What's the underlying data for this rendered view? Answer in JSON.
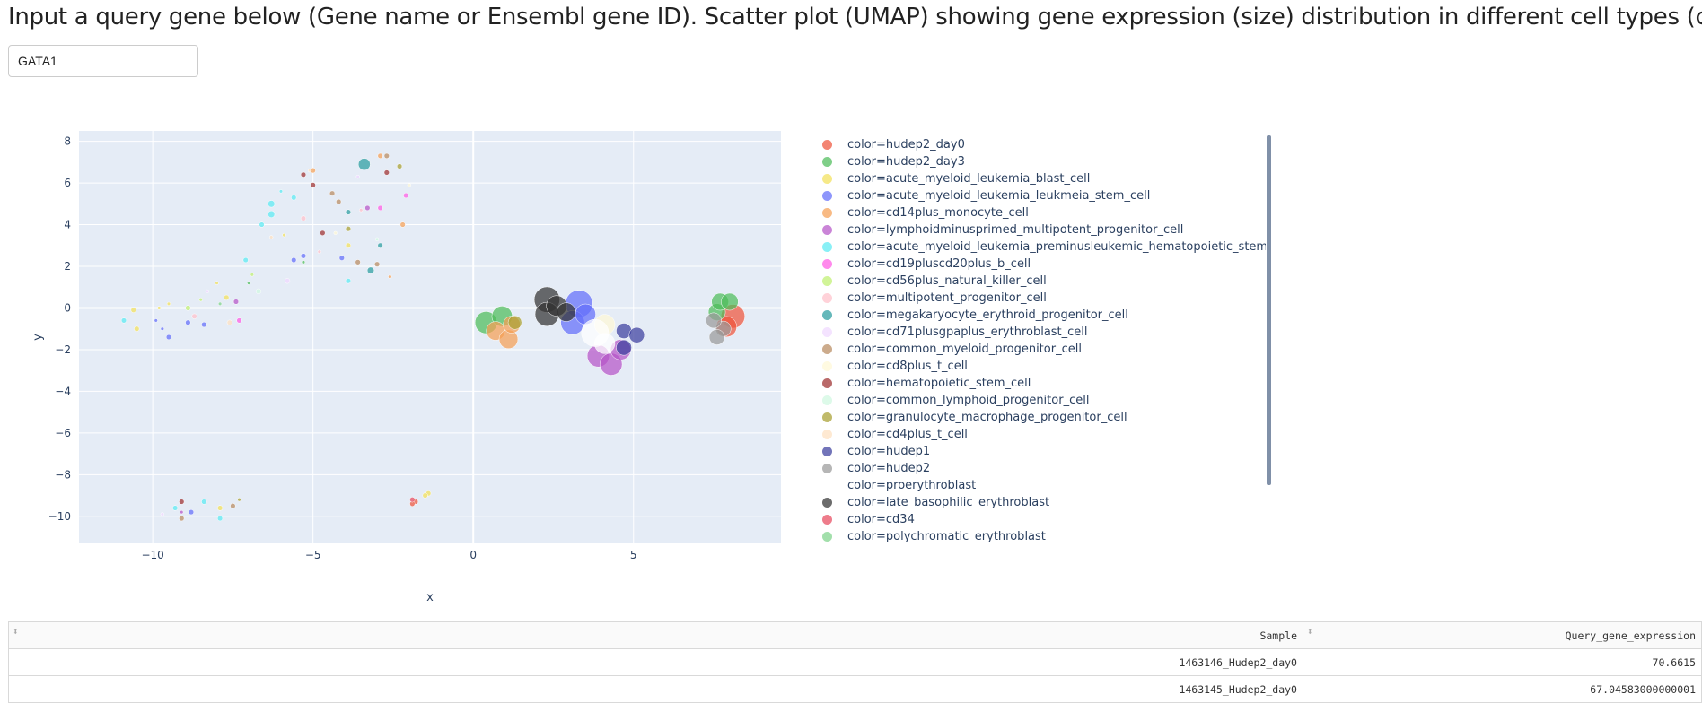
{
  "header": {
    "title": "Input a query gene below (Gene name or Ensembl gene ID). Scatter plot (UMAP) showing gene expression (size) distribution in different cell types (color)"
  },
  "query": {
    "value": "GATA1"
  },
  "chart_data": {
    "type": "scatter",
    "xlabel": "x",
    "ylabel": "y",
    "xlim": [
      -12.3,
      9.6
    ],
    "ylim": [
      -11.3,
      8.5
    ],
    "x_ticks": [
      -10,
      -5,
      0,
      5
    ],
    "y_ticks": [
      8,
      6,
      4,
      2,
      0,
      -2,
      -4,
      -6,
      -8,
      -10
    ],
    "background": "#e5ecf6",
    "grid": true,
    "legend_position": "right",
    "series": [
      {
        "name": "color=hudep2_day0",
        "color": "#ef553b",
        "points": [
          [
            8.1,
            -0.4,
            14
          ],
          [
            7.9,
            -0.9,
            12
          ],
          [
            -1.8,
            -9.3,
            3
          ],
          [
            -1.9,
            -9.4,
            3
          ]
        ]
      },
      {
        "name": "color=hudep2_day3",
        "color": "#4dbd5a",
        "points": [
          [
            0.4,
            -0.7,
            13
          ],
          [
            0.9,
            -0.4,
            12
          ],
          [
            7.6,
            -0.2,
            10
          ],
          [
            7.7,
            0.3,
            10
          ],
          [
            8.0,
            0.3,
            10
          ],
          [
            -7.0,
            1.2,
            2
          ],
          [
            -5.3,
            2.2,
            2
          ]
        ]
      },
      {
        "name": "color=acute_myeloid_leukemia_blast_cell",
        "color": "#f2e05a",
        "points": [
          [
            -10.6,
            -0.1,
            3
          ],
          [
            -10.5,
            -1.0,
            3
          ],
          [
            -7.7,
            0.5,
            3
          ],
          [
            -7.9,
            -9.6,
            3
          ],
          [
            -1.4,
            -8.9,
            3
          ],
          [
            -1.5,
            -9.0,
            3
          ],
          [
            -3.9,
            3.0,
            3
          ],
          [
            -8.0,
            1.2,
            2
          ],
          [
            -9.5,
            0.2,
            2
          ],
          [
            -9.8,
            0.0,
            2
          ],
          [
            -5.9,
            3.5,
            2
          ]
        ]
      },
      {
        "name": "color=acute_myeloid_leukemia_leukmeia_stem_cell",
        "color": "#636efa",
        "points": [
          [
            3.3,
            0.2,
            16
          ],
          [
            3.1,
            -0.7,
            14
          ],
          [
            3.5,
            -0.3,
            12
          ],
          [
            -9.9,
            -0.6,
            2
          ],
          [
            -9.7,
            -1.0,
            2
          ],
          [
            -9.5,
            -1.4,
            3
          ],
          [
            -8.9,
            -0.7,
            3
          ],
          [
            -8.4,
            -0.8,
            3
          ],
          [
            -5.3,
            2.5,
            3
          ],
          [
            -5.6,
            2.3,
            3
          ],
          [
            -4.1,
            2.4,
            3
          ],
          [
            -8.8,
            -9.8,
            3
          ]
        ]
      },
      {
        "name": "color=cd14plus_monocyte_cell",
        "color": "#f5a055",
        "points": [
          [
            0.7,
            -1.1,
            11
          ],
          [
            1.1,
            -1.5,
            11
          ],
          [
            1.2,
            -0.8,
            10
          ],
          [
            -5.0,
            6.6,
            3
          ],
          [
            -2.9,
            7.3,
            3
          ],
          [
            -2.2,
            4.0,
            3
          ],
          [
            -2.6,
            1.5,
            2
          ]
        ]
      },
      {
        "name": "color=lymphoidminusprimed_multipotent_progenitor_cell",
        "color": "#b655c8",
        "points": [
          [
            3.9,
            -2.3,
            13
          ],
          [
            4.3,
            -2.7,
            13
          ],
          [
            4.6,
            -2.0,
            12
          ],
          [
            -7.4,
            0.3,
            3
          ],
          [
            -3.3,
            4.8,
            3
          ],
          [
            -9.1,
            -9.8,
            2
          ]
        ]
      },
      {
        "name": "color=acute_myeloid_leukemia_preminusleukemic_hematopoietic_stem_cell",
        "color": "#5ceaf2",
        "points": [
          [
            -6.3,
            4.5,
            4
          ],
          [
            -6.3,
            5.0,
            4
          ],
          [
            -6.6,
            4.0,
            3
          ],
          [
            -7.1,
            2.3,
            3
          ],
          [
            -5.6,
            5.3,
            3
          ],
          [
            -6.0,
            5.6,
            2
          ],
          [
            -9.3,
            -9.6,
            3
          ],
          [
            -8.4,
            -9.3,
            3
          ],
          [
            -7.9,
            -10.1,
            3
          ],
          [
            -3.9,
            1.3,
            3
          ],
          [
            -10.9,
            -0.6,
            3
          ]
        ]
      },
      {
        "name": "color=cd19pluscd20plus_b_cell",
        "color": "#ff5be4",
        "points": [
          [
            -7.3,
            -0.6,
            3
          ],
          [
            -2.9,
            4.8,
            3
          ],
          [
            -2.1,
            5.4,
            3
          ]
        ]
      },
      {
        "name": "color=cd56plus_natural_killer_cell",
        "color": "#bff070",
        "points": [
          [
            -8.9,
            0.0,
            3
          ],
          [
            -6.9,
            1.6,
            2
          ],
          [
            -8.5,
            0.4,
            2
          ]
        ]
      },
      {
        "name": "color=multipotent_progenitor_cell",
        "color": "#ffc0cb",
        "points": [
          [
            -8.7,
            -0.4,
            3
          ],
          [
            -5.3,
            4.3,
            3
          ],
          [
            -4.8,
            2.7,
            2
          ],
          [
            -3.5,
            4.7,
            2
          ]
        ]
      },
      {
        "name": "color=megakaryocyte_erythroid_progenitor_cell",
        "color": "#2a9da0",
        "points": [
          [
            -3.4,
            6.9,
            7
          ],
          [
            -3.2,
            1.8,
            4
          ],
          [
            -3.9,
            4.6,
            3
          ],
          [
            -2.9,
            3.0,
            3
          ]
        ]
      },
      {
        "name": "color=cd71plusgpaplus_erythroblast_cell",
        "color": "#f0d8ff",
        "points": [
          [
            -5.8,
            1.3,
            3
          ],
          [
            -9.7,
            -9.9,
            2
          ],
          [
            -8.3,
            0.8,
            2
          ],
          [
            -3.6,
            6.3,
            2
          ]
        ]
      },
      {
        "name": "color=common_myeloid_progenitor_cell",
        "color": "#b88b5f",
        "points": [
          [
            -4.4,
            5.5,
            3
          ],
          [
            -3.6,
            2.2,
            3
          ],
          [
            -9.1,
            -10.1,
            3
          ],
          [
            -7.5,
            -9.5,
            3
          ],
          [
            -4.2,
            5.1,
            3
          ],
          [
            -2.7,
            7.3,
            3
          ],
          [
            -3.0,
            2.1,
            3
          ]
        ]
      },
      {
        "name": "color=cd8plus_t_cell",
        "color": "#fff8d6",
        "points": [
          [
            4.1,
            -0.8,
            12
          ],
          [
            -4.3,
            3.6,
            2
          ],
          [
            -2.0,
            5.9,
            2
          ]
        ]
      },
      {
        "name": "color=hematopoietic_stem_cell",
        "color": "#9e2f2f",
        "points": [
          [
            -5.3,
            6.4,
            3
          ],
          [
            -4.7,
            3.6,
            3
          ],
          [
            -2.7,
            6.5,
            3
          ],
          [
            -9.1,
            -9.3,
            3
          ],
          [
            -5.0,
            5.9,
            3
          ]
        ]
      },
      {
        "name": "color=common_lymphoid_progenitor_cell",
        "color": "#d0f8e0",
        "points": [
          [
            -6.7,
            0.8,
            3
          ],
          [
            -3.0,
            3.3,
            2
          ]
        ]
      },
      {
        "name": "color=granulocyte_macrophage_progenitor_cell",
        "color": "#a8a030",
        "points": [
          [
            1.3,
            -0.7,
            8
          ],
          [
            -3.9,
            3.8,
            3
          ],
          [
            -2.3,
            6.8,
            3
          ],
          [
            -7.3,
            -9.2,
            2
          ]
        ]
      },
      {
        "name": "color=cd4plus_t_cell",
        "color": "#fde0c0",
        "points": [
          [
            -7.6,
            -0.7,
            3
          ],
          [
            -5.1,
            6.6,
            2
          ],
          [
            -6.3,
            3.4,
            2
          ]
        ]
      },
      {
        "name": "color=hudep1",
        "color": "#3b3f9e",
        "points": [
          [
            4.7,
            -1.1,
            9
          ],
          [
            5.1,
            -1.3,
            9
          ],
          [
            4.7,
            -1.9,
            9
          ]
        ]
      },
      {
        "name": "color=hudep2",
        "color": "#9a9a9a",
        "points": [
          [
            7.8,
            -1.0,
            9
          ],
          [
            7.5,
            -0.6,
            9
          ],
          [
            7.6,
            -1.4,
            9
          ]
        ]
      },
      {
        "name": "color=proerythroblast",
        "color": "#ffffff",
        "points": [
          [
            3.8,
            -1.2,
            16
          ],
          [
            4.1,
            -1.7,
            12
          ]
        ]
      },
      {
        "name": "color=late_basophilic_erythroblast",
        "color": "#333333",
        "points": [
          [
            2.3,
            0.4,
            15
          ],
          [
            2.3,
            -0.3,
            14
          ],
          [
            2.6,
            0.1,
            12
          ],
          [
            2.9,
            -0.2,
            11
          ]
        ]
      },
      {
        "name": "color=cd34",
        "color": "#e8495e",
        "points": [
          [
            -1.9,
            -9.2,
            3
          ]
        ]
      },
      {
        "name": "color=polychromatic_erythroblast",
        "color": "#7ed38a",
        "points": [
          [
            -7.9,
            0.2,
            2
          ]
        ]
      }
    ]
  },
  "table": {
    "columns": [
      "Sample",
      "Query_gene_expression"
    ],
    "rows": [
      [
        "1463146_Hudep2_day0",
        "70.6615"
      ],
      [
        "1463145_Hudep2_day0",
        "67.04583000000001"
      ]
    ]
  }
}
